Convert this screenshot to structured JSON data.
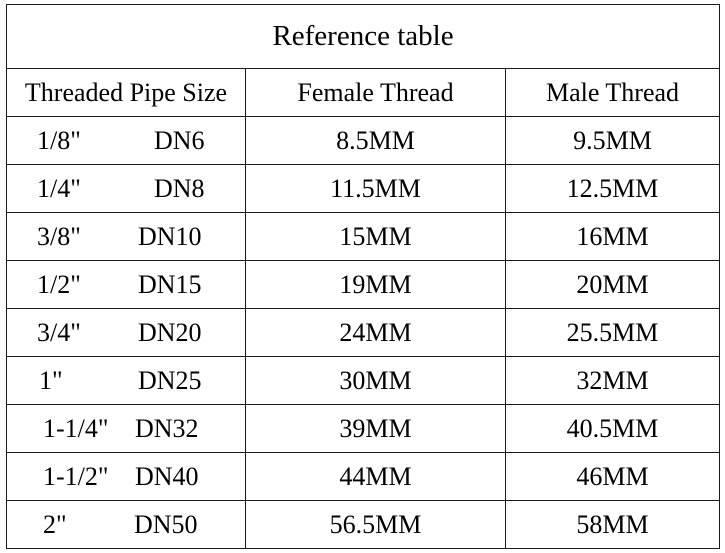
{
  "table": {
    "title": "Reference table",
    "headers": {
      "size": "Threaded Pipe Size",
      "female": "Female Thread",
      "male": "Male Thread"
    },
    "rows": [
      {
        "inch": "1/8\"",
        "dn": "DN6",
        "female": "8.5MM",
        "male": "9.5MM"
      },
      {
        "inch": "1/4\"",
        "dn": "DN8",
        "female": "11.5MM",
        "male": "12.5MM"
      },
      {
        "inch": "3/8\"",
        "dn": "DN10",
        "female": "15MM",
        "male": "16MM"
      },
      {
        "inch": "1/2\"",
        "dn": "DN15",
        "female": "19MM",
        "male": "20MM"
      },
      {
        "inch": "3/4\"",
        "dn": "DN20",
        "female": "24MM",
        "male": "25.5MM"
      },
      {
        "inch": "1\"",
        "dn": "DN25",
        "female": "30MM",
        "male": "32MM"
      },
      {
        "inch": "1-1/4\"",
        "dn": "DN32",
        "female": "39MM",
        "male": "40.5MM"
      },
      {
        "inch": "1-1/2\"",
        "dn": "DN40",
        "female": "44MM",
        "male": "46MM"
      },
      {
        "inch": "2\"",
        "dn": "DN50",
        "female": "56.5MM",
        "male": "58MM"
      }
    ]
  }
}
